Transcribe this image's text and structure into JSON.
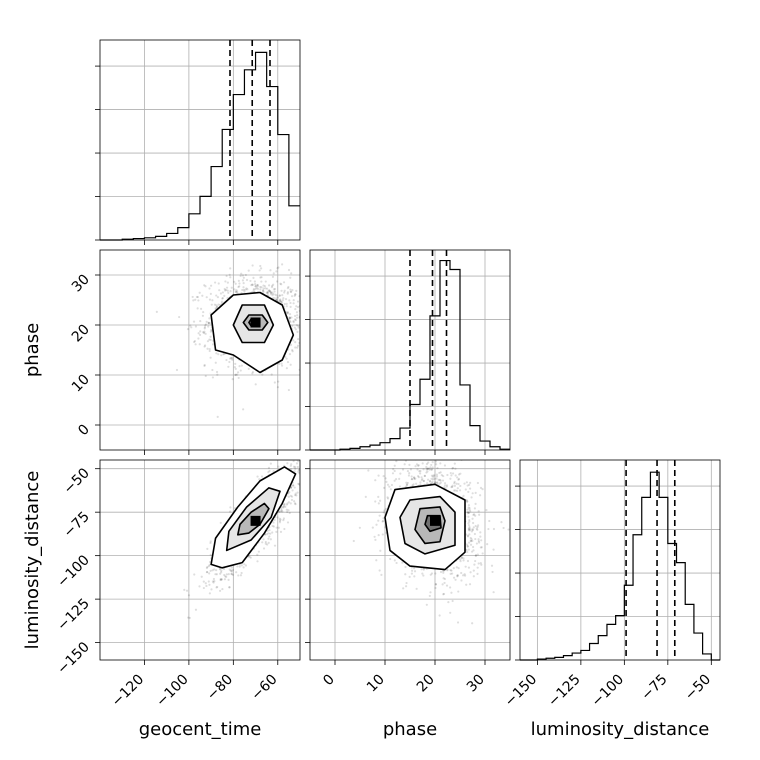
{
  "chart_data": {
    "type": "corner",
    "title": "",
    "parameters": [
      "geocent_time",
      "phase",
      "luminosity_distance"
    ],
    "grid": true,
    "panels": [
      {
        "kind": "histogram",
        "param": "geocent_time",
        "xlim": [
          -140,
          -50
        ],
        "bin_edges": [
          -140,
          -135,
          -130,
          -125,
          -120,
          -115,
          -110,
          -105,
          -100,
          -95,
          -90,
          -85,
          -80,
          -75,
          -70,
          -65,
          -60,
          -55,
          -50
        ],
        "counts": [
          0,
          0,
          1,
          2,
          3,
          5,
          9,
          17,
          36,
          60,
          101,
          152,
          200,
          234,
          258,
          211,
          145,
          47
        ],
        "quantiles": [
          -81.5,
          -71.5,
          -63.5
        ],
        "ylim": [
          0,
          275
        ]
      },
      {
        "kind": "histogram",
        "param": "phase",
        "xlim": [
          -5,
          35
        ],
        "bin_edges": [
          -5,
          -3,
          -1,
          1,
          3,
          5,
          7,
          9,
          11,
          13,
          15,
          17,
          19,
          21,
          23,
          25,
          27,
          29,
          31,
          33,
          35
        ],
        "counts": [
          0,
          0,
          0,
          5,
          10,
          20,
          30,
          45,
          70,
          135,
          280,
          435,
          825,
          1165,
          1110,
          400,
          150,
          55,
          20,
          5
        ],
        "quantiles": [
          15.0,
          19.5,
          22.3
        ],
        "ylim": [
          0,
          1230
        ]
      },
      {
        "kind": "histogram",
        "param": "luminosity_distance",
        "xlim": [
          -160,
          -45
        ],
        "bin_edges": [
          -160,
          -155,
          -150,
          -145,
          -140,
          -135,
          -130,
          -125,
          -120,
          -115,
          -110,
          -105,
          -100,
          -95,
          -90,
          -85,
          -80,
          -75,
          -70,
          -65,
          -60,
          -55,
          -50,
          -45
        ],
        "counts": [
          0,
          0,
          1,
          2,
          3,
          5,
          8,
          11,
          19,
          28,
          41,
          51,
          86,
          144,
          187,
          216,
          187,
          134,
          112,
          64,
          31,
          7,
          0
        ],
        "quantiles": [
          -99.0,
          -81.2,
          -71.0
        ],
        "ylim": [
          0,
          230
        ]
      },
      {
        "kind": "2d",
        "x": "geocent_time",
        "y": "phase",
        "xlim": [
          -140,
          -50
        ],
        "ylim": [
          -5,
          35
        ],
        "xticks": [
          -120,
          -100,
          -80,
          -60
        ],
        "yticks": [
          0,
          10,
          20,
          30
        ],
        "center": [
          -70,
          20.5
        ],
        "sd": [
          11,
          4.5
        ],
        "rho": 0.0,
        "contours": [
          [
            [
              -80,
              26
            ],
            [
              -68,
              26.5
            ],
            [
              -58,
              24
            ],
            [
              -53,
              18
            ],
            [
              -58,
              13
            ],
            [
              -68,
              10.5
            ],
            [
              -80,
              14
            ],
            [
              -88,
              15
            ],
            [
              -90,
              22
            ]
          ],
          [
            [
              -76,
              24
            ],
            [
              -66,
              24
            ],
            [
              -62,
              20
            ],
            [
              -66,
              16.5
            ],
            [
              -76,
              16.5
            ],
            [
              -80,
              20
            ]
          ],
          [
            [
              -73,
              22
            ],
            [
              -67,
              22
            ],
            [
              -64.5,
              20.5
            ],
            [
              -67,
              19
            ],
            [
              -73,
              19
            ],
            [
              -75.5,
              20.5
            ]
          ],
          [
            [
              -72,
              21.2
            ],
            [
              -70,
              21.2
            ],
            [
              -69,
              20.5
            ],
            [
              -70,
              19.8
            ],
            [
              -72,
              19.8
            ],
            [
              -73,
              20.5
            ]
          ]
        ]
      },
      {
        "kind": "2d",
        "x": "geocent_time",
        "y": "luminosity_distance",
        "xlim": [
          -140,
          -50
        ],
        "ylim": [
          -160,
          -45
        ],
        "xticks": [
          -120,
          -100,
          -80,
          -60
        ],
        "yticks": [
          -50,
          -75,
          -100,
          -125,
          -150
        ],
        "xticklabels": [
          "−120",
          "−100",
          "−80",
          "−60"
        ],
        "yticklabels": [
          "−50",
          "−75",
          "−100",
          "−125",
          "−150"
        ],
        "center": [
          -70,
          -80
        ],
        "sd": [
          10,
          16
        ],
        "rho": 0.85,
        "contours": [
          [
            [
              -85,
              -107
            ],
            [
              -90,
              -105
            ],
            [
              -88,
              -90
            ],
            [
              -78,
              -72
            ],
            [
              -68,
              -57
            ],
            [
              -57,
              -49
            ],
            [
              -52,
              -53
            ],
            [
              -58,
              -70
            ],
            [
              -66,
              -87
            ],
            [
              -76,
              -104
            ]
          ],
          [
            [
              -83,
              -97
            ],
            [
              -82,
              -86
            ],
            [
              -74,
              -72
            ],
            [
              -64,
              -61
            ],
            [
              -59,
              -63
            ],
            [
              -63,
              -78
            ],
            [
              -72,
              -91
            ]
          ],
          [
            [
              -78,
              -88
            ],
            [
              -77,
              -82
            ],
            [
              -72,
              -75
            ],
            [
              -66,
              -70
            ],
            [
              -64,
              -73
            ],
            [
              -68,
              -82
            ],
            [
              -73,
              -87
            ]
          ]
        ]
      },
      {
        "kind": "2d",
        "x": "phase",
        "y": "luminosity_distance",
        "xlim": [
          -5,
          35
        ],
        "ylim": [
          -160,
          -45
        ],
        "xticks": [
          0,
          10,
          20,
          30
        ],
        "yticks": [
          -50,
          -75,
          -100,
          -125,
          -150
        ],
        "center": [
          20,
          -80
        ],
        "sd": [
          4.5,
          16
        ],
        "rho": -0.2,
        "contours": [
          [
            [
              12,
              -62
            ],
            [
              20,
              -59
            ],
            [
              26,
              -68
            ],
            [
              26,
              -98
            ],
            [
              22,
              -108
            ],
            [
              15,
              -106
            ],
            [
              11,
              -97
            ],
            [
              10,
              -78
            ]
          ],
          [
            [
              15,
              -68
            ],
            [
              21,
              -66
            ],
            [
              24,
              -75
            ],
            [
              24,
              -94
            ],
            [
              18,
              -99
            ],
            [
              14,
              -93
            ],
            [
              13,
              -78
            ]
          ],
          [
            [
              17,
              -73
            ],
            [
              21,
              -72
            ],
            [
              22,
              -80
            ],
            [
              21,
              -92
            ],
            [
              18,
              -93
            ],
            [
              16,
              -85
            ]
          ],
          [
            [
              18.5,
              -77
            ],
            [
              21,
              -77
            ],
            [
              21.2,
              -84
            ],
            [
              19,
              -86
            ],
            [
              18,
              -82
            ]
          ]
        ]
      }
    ],
    "xlabels": {
      "geocent_time": "geocent_time",
      "phase": "phase",
      "luminosity_distance": "luminosity_distance"
    },
    "ylabels": {
      "phase": "phase",
      "luminosity_distance": "luminosity_distance"
    },
    "bottom_xticks": {
      "geocent_time": [
        "−120",
        "−100",
        "−80",
        "−60"
      ],
      "phase": [
        "0",
        "10",
        "20",
        "30"
      ],
      "luminosity_distance": [
        "−150",
        "−125",
        "−100",
        "−75",
        "−50"
      ]
    },
    "left_yticks": {
      "phase": [
        "0",
        "10",
        "20",
        "30"
      ],
      "luminosity_distance": [
        "−50",
        "−75",
        "−100",
        "−125",
        "−150"
      ]
    }
  }
}
